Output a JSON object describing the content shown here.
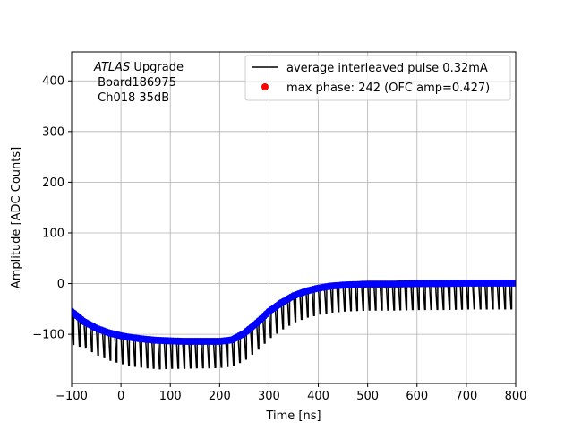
{
  "chart_data": {
    "type": "line",
    "annotation": {
      "italic": "ATLAS",
      "rest": " Upgrade",
      "line2": " Board186975",
      "line3": " Ch018 35dB"
    },
    "xlabel": "Time [ns]",
    "ylabel": "Amplitude [ADC Counts]",
    "xlim": [
      -100,
      800
    ],
    "ylim": [
      -197,
      457
    ],
    "xticks": [
      -100,
      0,
      100,
      200,
      300,
      400,
      500,
      600,
      700,
      800
    ],
    "xtick_labels": [
      "−100",
      "0",
      "100",
      "200",
      "300",
      "400",
      "500",
      "600",
      "700",
      "800"
    ],
    "yticks": [
      -100,
      0,
      100,
      200,
      300,
      400
    ],
    "ytick_labels": [
      "−100",
      "0",
      "100",
      "200",
      "300",
      "400"
    ],
    "grid": true,
    "legend_position": "top-right",
    "series": [
      {
        "name": "average interleaved pulse 0.32mA",
        "style": "line",
        "color": "#000000",
        "baseline_x": [
          -100,
          -75,
          -50,
          -25,
          0,
          25,
          50,
          75,
          100,
          125,
          150,
          175,
          200,
          225,
          250,
          275,
          300,
          325,
          350,
          375,
          400,
          425,
          450,
          475,
          500,
          550,
          600,
          650,
          700,
          750,
          800
        ],
        "baseline_y": [
          -55,
          -75,
          -88,
          -97,
          -103,
          -107,
          -110,
          -112,
          -113,
          -114,
          -114,
          -114,
          -114,
          -111,
          -98,
          -78,
          -55,
          -38,
          -24,
          -15,
          -9,
          -5,
          -3,
          -2,
          -1,
          -1,
          0,
          0,
          1,
          1,
          1
        ],
        "dip_spacing_ns": 12.5,
        "dip_depth_y": [
          -65,
          -52,
          -53,
          -54,
          -55,
          -56,
          -56,
          -56,
          -54,
          -53,
          -52,
          -52,
          -51,
          -51,
          -51,
          -51,
          -51,
          -51,
          -51,
          -51,
          -51,
          -51,
          -51,
          -51,
          -51,
          -51,
          -51,
          -51,
          -51,
          -51,
          -51
        ]
      },
      {
        "name": "max phase: 242 (OFC amp=0.427)",
        "style": "markers",
        "color": "#0000ff",
        "points_spacing_ns": 5
      }
    ]
  }
}
